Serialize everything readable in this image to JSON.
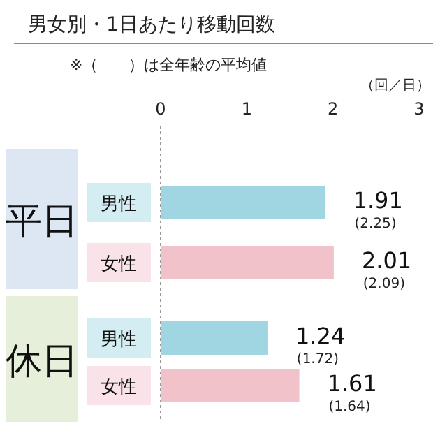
{
  "chart_data": {
    "type": "bar",
    "orientation": "horizontal",
    "title": "男女別・1日あたり移動回数",
    "subtitle": "※（　　）は全年齢の平均値",
    "xlabel": "（回／日）",
    "categories": [
      "男性",
      "女性",
      "男性",
      "女性"
    ],
    "values": [
      1.91,
      2.01,
      1.24,
      1.61
    ],
    "colors": [
      "#9fd6e2",
      "#f2c2cb",
      "#9fd6e2",
      "#f2c2cb"
    ],
    "xlim": [
      0,
      3
    ],
    "xticks": [
      0,
      1,
      2,
      3
    ],
    "data_labels": true,
    "annotations": [
      "平日",
      "休日",
      "(2.25)",
      "(2.09)",
      "(1.72)",
      "(1.64)"
    ]
  }
}
